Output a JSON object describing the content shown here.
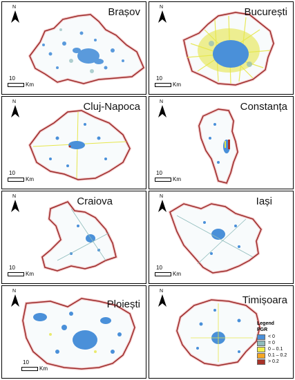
{
  "legend": {
    "title": "Legend",
    "heading": "PGR",
    "items": [
      {
        "label": "< 0",
        "color": "#4a90d9"
      },
      {
        "label": "= 0",
        "color": "#8fbcbc"
      },
      {
        "label": "0 – 0.1",
        "color": "#f0f04a"
      },
      {
        "label": "0.1 – 0.2",
        "color": "#f5a623"
      },
      {
        "label": "> 0.2",
        "color": "#a83228"
      }
    ]
  },
  "scale": {
    "value": "10",
    "unit": "Km"
  },
  "north_label": "N",
  "panels": [
    {
      "name": "Brașov"
    },
    {
      "name": "București"
    },
    {
      "name": "Cluj-Napoca"
    },
    {
      "name": "Constanța"
    },
    {
      "name": "Craiova"
    },
    {
      "name": "Iași"
    },
    {
      "name": "Ploiești"
    },
    {
      "name": "Timișoara"
    }
  ],
  "colors": {
    "boundary": "#9b2a2a",
    "boundary_halo": "#f3c9c9",
    "urban": "#4a90d9",
    "stable": "#8fbcbc",
    "growth": "#e6e64a"
  }
}
